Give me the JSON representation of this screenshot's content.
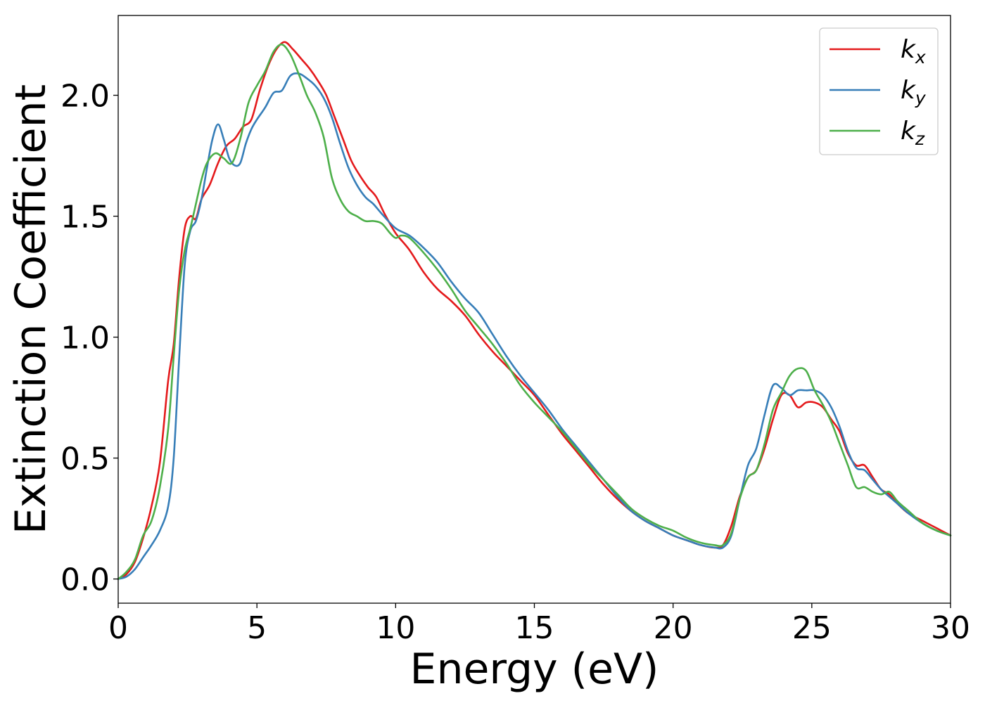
{
  "chart_data": {
    "type": "line",
    "xlabel": "Energy (eV)",
    "ylabel": "Extinction Coefficient",
    "xlim": [
      0,
      30
    ],
    "ylim": [
      -0.1,
      2.33
    ],
    "xticks": [
      0,
      5,
      10,
      15,
      20,
      25,
      30
    ],
    "yticks": [
      0.0,
      0.5,
      1.0,
      1.5,
      2.0
    ],
    "xtick_labels": [
      "0",
      "5",
      "10",
      "15",
      "20",
      "25",
      "30"
    ],
    "ytick_labels": [
      "0.0",
      "0.5",
      "1.0",
      "1.5",
      "2.0"
    ],
    "grid": false,
    "legend": "top-right",
    "series": [
      {
        "name": "k",
        "subscript": "x",
        "color": "#e41a1c",
        "x": [
          0,
          0.3,
          0.6,
          0.9,
          1.2,
          1.5,
          1.8,
          2.0,
          2.2,
          2.4,
          2.6,
          2.8,
          3.0,
          3.3,
          3.6,
          3.9,
          4.2,
          4.5,
          4.8,
          5.1,
          5.4,
          5.7,
          6.0,
          6.3,
          6.6,
          6.9,
          7.2,
          7.5,
          7.8,
          8.1,
          8.4,
          8.7,
          9.0,
          9.3,
          9.6,
          10.0,
          10.5,
          11.0,
          11.5,
          12.0,
          12.5,
          13.0,
          13.5,
          14.0,
          14.5,
          15.0,
          15.5,
          16.0,
          16.5,
          17.0,
          17.5,
          18.0,
          18.5,
          19.0,
          19.5,
          20.0,
          20.5,
          21.0,
          21.5,
          21.8,
          22.1,
          22.4,
          22.7,
          23.0,
          23.3,
          23.6,
          23.9,
          24.2,
          24.5,
          24.8,
          25.1,
          25.4,
          25.7,
          26.0,
          26.3,
          26.6,
          26.9,
          27.2,
          27.5,
          27.8,
          28.1,
          28.5,
          29.0,
          29.5,
          30.0
        ],
        "values": [
          0.0,
          0.02,
          0.07,
          0.17,
          0.3,
          0.48,
          0.82,
          0.97,
          1.25,
          1.45,
          1.5,
          1.49,
          1.57,
          1.63,
          1.72,
          1.79,
          1.82,
          1.87,
          1.9,
          2.02,
          2.12,
          2.19,
          2.22,
          2.19,
          2.15,
          2.11,
          2.06,
          2.0,
          1.91,
          1.82,
          1.73,
          1.67,
          1.62,
          1.58,
          1.51,
          1.43,
          1.36,
          1.27,
          1.2,
          1.15,
          1.09,
          1.01,
          0.94,
          0.88,
          0.82,
          0.76,
          0.68,
          0.6,
          0.53,
          0.46,
          0.39,
          0.33,
          0.28,
          0.24,
          0.21,
          0.18,
          0.16,
          0.14,
          0.13,
          0.14,
          0.22,
          0.34,
          0.42,
          0.45,
          0.54,
          0.66,
          0.76,
          0.76,
          0.71,
          0.73,
          0.73,
          0.71,
          0.66,
          0.61,
          0.52,
          0.47,
          0.47,
          0.42,
          0.37,
          0.35,
          0.31,
          0.27,
          0.24,
          0.21,
          0.18
        ]
      },
      {
        "name": "k",
        "subscript": "y",
        "color": "#377eb8",
        "x": [
          0,
          0.3,
          0.6,
          0.9,
          1.2,
          1.5,
          1.8,
          2.0,
          2.2,
          2.4,
          2.6,
          2.8,
          3.0,
          3.2,
          3.4,
          3.6,
          3.8,
          4.0,
          4.2,
          4.4,
          4.6,
          4.8,
          5.0,
          5.3,
          5.6,
          5.9,
          6.2,
          6.5,
          6.8,
          7.1,
          7.4,
          7.7,
          8.0,
          8.3,
          8.6,
          8.9,
          9.2,
          9.5,
          10.0,
          10.5,
          11.0,
          11.5,
          12.0,
          12.5,
          13.0,
          13.5,
          14.0,
          14.5,
          15.0,
          15.5,
          16.0,
          16.5,
          17.0,
          17.5,
          18.0,
          18.5,
          19.0,
          19.5,
          20.0,
          20.5,
          21.0,
          21.5,
          21.8,
          22.1,
          22.4,
          22.7,
          23.0,
          23.3,
          23.6,
          23.9,
          24.2,
          24.5,
          24.8,
          25.1,
          25.4,
          25.7,
          26.0,
          26.3,
          26.6,
          26.9,
          27.2,
          27.5,
          27.8,
          28.1,
          28.5,
          29.0,
          29.5,
          30.0
        ],
        "values": [
          0.0,
          0.01,
          0.04,
          0.09,
          0.14,
          0.2,
          0.3,
          0.5,
          0.92,
          1.3,
          1.44,
          1.48,
          1.57,
          1.7,
          1.82,
          1.88,
          1.82,
          1.74,
          1.71,
          1.72,
          1.8,
          1.86,
          1.9,
          1.95,
          2.01,
          2.02,
          2.08,
          2.09,
          2.07,
          2.04,
          1.99,
          1.91,
          1.8,
          1.7,
          1.63,
          1.58,
          1.55,
          1.51,
          1.45,
          1.42,
          1.37,
          1.31,
          1.23,
          1.16,
          1.1,
          1.01,
          0.92,
          0.84,
          0.77,
          0.7,
          0.62,
          0.55,
          0.48,
          0.41,
          0.34,
          0.28,
          0.24,
          0.21,
          0.18,
          0.16,
          0.14,
          0.13,
          0.13,
          0.18,
          0.33,
          0.47,
          0.54,
          0.68,
          0.8,
          0.79,
          0.76,
          0.78,
          0.78,
          0.78,
          0.76,
          0.71,
          0.63,
          0.53,
          0.46,
          0.45,
          0.41,
          0.37,
          0.34,
          0.31,
          0.27,
          0.23,
          0.2,
          0.18
        ]
      },
      {
        "name": "k",
        "subscript": "z",
        "color": "#4daf4a",
        "x": [
          0,
          0.3,
          0.6,
          0.9,
          1.2,
          1.5,
          1.8,
          2.0,
          2.2,
          2.4,
          2.6,
          2.8,
          3.0,
          3.2,
          3.5,
          3.8,
          4.1,
          4.4,
          4.7,
          5.0,
          5.3,
          5.6,
          5.9,
          6.2,
          6.5,
          6.8,
          7.1,
          7.4,
          7.7,
          8.0,
          8.3,
          8.6,
          8.9,
          9.2,
          9.5,
          9.8,
          10.0,
          10.2,
          10.5,
          11.0,
          11.5,
          12.0,
          12.5,
          13.0,
          13.5,
          14.0,
          14.5,
          15.0,
          15.5,
          16.0,
          16.5,
          17.0,
          17.5,
          18.0,
          18.5,
          19.0,
          19.5,
          20.0,
          20.5,
          21.0,
          21.5,
          21.8,
          22.1,
          22.4,
          22.7,
          23.0,
          23.3,
          23.6,
          23.9,
          24.2,
          24.5,
          24.8,
          25.1,
          25.4,
          25.7,
          26.0,
          26.3,
          26.6,
          26.9,
          27.2,
          27.5,
          27.8,
          28.1,
          28.5,
          29.0,
          29.5,
          30.0
        ],
        "values": [
          0.0,
          0.03,
          0.08,
          0.18,
          0.24,
          0.38,
          0.62,
          0.92,
          1.2,
          1.36,
          1.45,
          1.55,
          1.65,
          1.72,
          1.76,
          1.74,
          1.72,
          1.82,
          1.97,
          2.04,
          2.1,
          2.18,
          2.21,
          2.17,
          2.09,
          2.0,
          1.93,
          1.83,
          1.66,
          1.57,
          1.52,
          1.5,
          1.48,
          1.48,
          1.47,
          1.43,
          1.41,
          1.42,
          1.41,
          1.35,
          1.28,
          1.2,
          1.11,
          1.04,
          0.97,
          0.89,
          0.8,
          0.73,
          0.67,
          0.61,
          0.54,
          0.47,
          0.41,
          0.35,
          0.29,
          0.25,
          0.22,
          0.2,
          0.17,
          0.15,
          0.14,
          0.14,
          0.19,
          0.33,
          0.42,
          0.45,
          0.56,
          0.7,
          0.77,
          0.84,
          0.87,
          0.86,
          0.78,
          0.72,
          0.65,
          0.56,
          0.47,
          0.38,
          0.38,
          0.36,
          0.35,
          0.36,
          0.32,
          0.28,
          0.23,
          0.2,
          0.18
        ]
      }
    ]
  }
}
